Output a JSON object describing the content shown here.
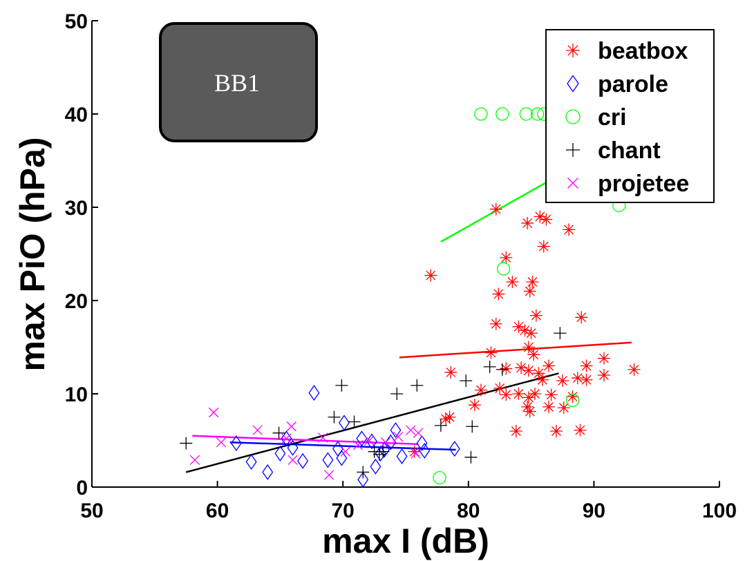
{
  "chart_data": {
    "type": "scatter",
    "xlabel": "max I (dB)",
    "ylabel": "max PiO (hPa)",
    "xlim": [
      50,
      100
    ],
    "ylim": [
      0,
      50
    ],
    "xticks": [
      50,
      60,
      70,
      80,
      90,
      100
    ],
    "yticks": [
      0,
      10,
      20,
      30,
      40,
      50
    ],
    "grid": false,
    "legend_position": "top-right",
    "annotation": "BB1",
    "series": [
      {
        "name": "beatbox",
        "color": "#ff0000",
        "marker": "asterisk",
        "points": [
          [
            77,
            22.7
          ],
          [
            82.2,
            29.8
          ],
          [
            83,
            24.6
          ],
          [
            83.5,
            22
          ],
          [
            84.7,
            28.3
          ],
          [
            85.7,
            29
          ],
          [
            86.2,
            28.7
          ],
          [
            85.1,
            22
          ],
          [
            84.9,
            21
          ],
          [
            82.4,
            20.7
          ],
          [
            86,
            25.8
          ],
          [
            88,
            27.6
          ],
          [
            82.2,
            17.5
          ],
          [
            84,
            17.2
          ],
          [
            84.5,
            16.8
          ],
          [
            85,
            16.5
          ],
          [
            85.4,
            18.4
          ],
          [
            89,
            18.2
          ],
          [
            84.8,
            15
          ],
          [
            85.2,
            14.2
          ],
          [
            81.8,
            14.4
          ],
          [
            83,
            12.7
          ],
          [
            84.2,
            12.8
          ],
          [
            84.8,
            12.5
          ],
          [
            85.6,
            12.2
          ],
          [
            86.4,
            13
          ],
          [
            87.5,
            11.4
          ],
          [
            88.7,
            11.7
          ],
          [
            89.4,
            13
          ],
          [
            90.8,
            13.8
          ],
          [
            90.8,
            12
          ],
          [
            93.2,
            12.6
          ],
          [
            78.6,
            12.3
          ],
          [
            81,
            10.4
          ],
          [
            82.5,
            10.6
          ],
          [
            83,
            9.9
          ],
          [
            84,
            10
          ],
          [
            84.8,
            9.6
          ],
          [
            85.3,
            10
          ],
          [
            85.9,
            11.5
          ],
          [
            86.6,
            9.9
          ],
          [
            87.6,
            8.5
          ],
          [
            88.3,
            9.7
          ],
          [
            89.4,
            11.5
          ],
          [
            84.7,
            8.6
          ],
          [
            84.9,
            8.1
          ],
          [
            86.4,
            8.6
          ],
          [
            78.5,
            7.5
          ],
          [
            78.2,
            7.3
          ],
          [
            80.5,
            8.8
          ],
          [
            83.8,
            6
          ],
          [
            87,
            6
          ],
          [
            88.9,
            6.1
          ],
          [
            75.7,
            3.8
          ]
        ],
        "fit": [
          [
            74.5,
            13.9
          ],
          [
            93,
            15.5
          ]
        ]
      },
      {
        "name": "parole",
        "color": "#0000ff",
        "marker": "diamond",
        "points": [
          [
            61.5,
            4.7
          ],
          [
            62.7,
            2.7
          ],
          [
            64,
            1.6
          ],
          [
            65,
            3.6
          ],
          [
            65.5,
            5.2
          ],
          [
            66,
            4.2
          ],
          [
            66.8,
            2.8
          ],
          [
            67.7,
            10.1
          ],
          [
            68.8,
            2.9
          ],
          [
            69.6,
            4.1
          ],
          [
            69.9,
            3.1
          ],
          [
            70.1,
            6.9
          ],
          [
            71.5,
            5.2
          ],
          [
            71.6,
            0.8
          ],
          [
            72.3,
            4.9
          ],
          [
            72.6,
            2.2
          ],
          [
            73,
            3.6
          ],
          [
            73.3,
            4
          ],
          [
            73.8,
            4.8
          ],
          [
            74.2,
            6.1
          ],
          [
            74.7,
            3.3
          ],
          [
            76.3,
            4.7
          ],
          [
            76.5,
            3.9
          ],
          [
            78.9,
            4.1
          ]
        ],
        "fit": [
          [
            61,
            4.8
          ],
          [
            79,
            4
          ]
        ]
      },
      {
        "name": "cri",
        "color": "#00ff00",
        "marker": "circle",
        "points": [
          [
            81,
            40
          ],
          [
            82.7,
            40
          ],
          [
            84.6,
            40
          ],
          [
            85.5,
            40
          ],
          [
            86,
            40
          ],
          [
            92,
            30.2
          ],
          [
            82.8,
            23.4
          ],
          [
            88.3,
            9.3
          ],
          [
            77.7,
            1
          ]
        ],
        "fit": [
          [
            77.8,
            26.3
          ],
          [
            88.5,
            34.4
          ]
        ]
      },
      {
        "name": "chant",
        "color": "#000000",
        "marker": "plus",
        "points": [
          [
            57.5,
            4.7
          ],
          [
            64.9,
            5.8
          ],
          [
            69.3,
            7.5
          ],
          [
            69.9,
            10.9
          ],
          [
            70.9,
            7
          ],
          [
            74.3,
            10
          ],
          [
            75.9,
            10.9
          ],
          [
            79.8,
            11.4
          ],
          [
            81.7,
            12.9
          ],
          [
            82.7,
            12.6
          ],
          [
            87.3,
            16.5
          ],
          [
            77.8,
            6.6
          ],
          [
            80.3,
            6.5
          ],
          [
            80.2,
            3.2
          ],
          [
            71.6,
            1.6
          ],
          [
            72.5,
            3.8
          ],
          [
            73.2,
            3.8
          ],
          [
            72.9,
            3.5
          ]
        ],
        "fit": [
          [
            57.5,
            1.6
          ],
          [
            87.2,
            12.2
          ]
        ]
      },
      {
        "name": "projetee",
        "color": "#ff00ff",
        "marker": "x",
        "points": [
          [
            58.2,
            2.9
          ],
          [
            59.7,
            8
          ],
          [
            60.3,
            4.8
          ],
          [
            63.2,
            6.1
          ],
          [
            65.5,
            5.2
          ],
          [
            65.9,
            6.5
          ],
          [
            66,
            2.9
          ],
          [
            68.4,
            5.3
          ],
          [
            68.9,
            1.3
          ],
          [
            70.2,
            3.8
          ],
          [
            71.2,
            4.5
          ],
          [
            72.1,
            5
          ],
          [
            73.4,
            4.8
          ],
          [
            74.4,
            5.4
          ],
          [
            75.4,
            6.1
          ],
          [
            75.8,
            3.6
          ],
          [
            76,
            5.8
          ]
        ],
        "fit": [
          [
            58,
            5.5
          ],
          [
            76,
            4.6
          ]
        ]
      }
    ]
  }
}
